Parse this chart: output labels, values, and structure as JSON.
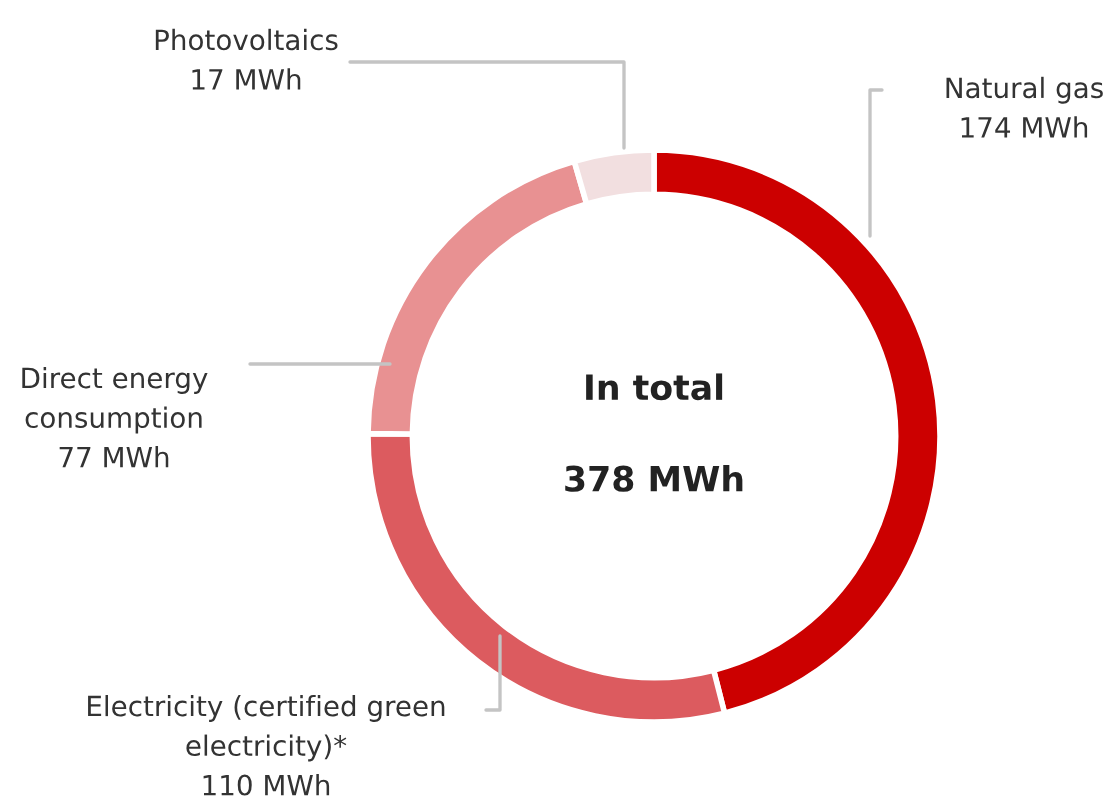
{
  "chart_data": {
    "type": "donut",
    "categories": [
      "Natural gas",
      "Electricity (certified green electricity)*",
      "Direct energy consumption",
      "Photovoltaics"
    ],
    "values": [
      174,
      110,
      77,
      17
    ],
    "value_labels": [
      "174 MWh",
      "110 MWh",
      "77 MWh",
      "17 MWh"
    ],
    "colors": [
      "#cc0000",
      "#dc5b5f",
      "#e89192",
      "#f2dfe0"
    ],
    "annotations": [
      "In total",
      "378 MWh"
    ],
    "legend": false
  }
}
